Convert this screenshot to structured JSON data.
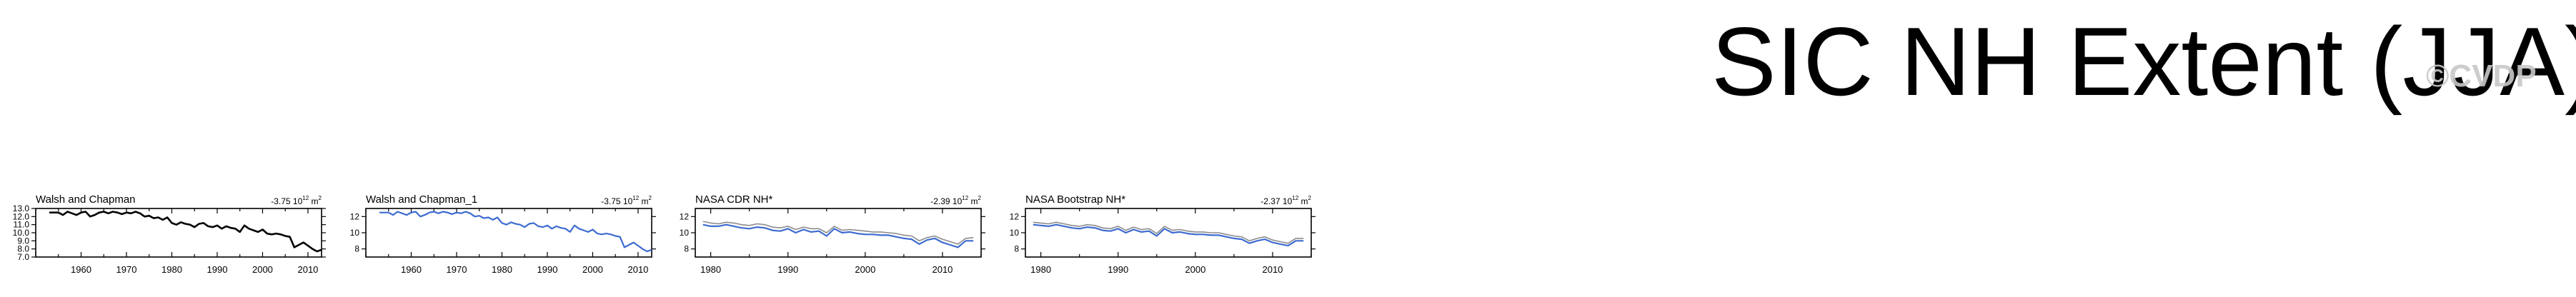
{
  "page": {
    "title": "SIC NH Extent (JJA)",
    "watermark": "©CVDP"
  },
  "chart_data": [
    {
      "type": "line",
      "title": "Walsh and Chapman",
      "trend_label": "-3.75 10",
      "trend_exp": "12",
      "trend_unit": "m",
      "trend_unit_exp": "2",
      "xlim": [
        1950,
        2013
      ],
      "ylim": [
        7.0,
        13.0
      ],
      "xticks": [
        1960,
        1970,
        1980,
        1990,
        2000,
        2010
      ],
      "yticks": [
        7.0,
        8.0,
        9.0,
        10.0,
        11.0,
        12.0,
        13.0
      ],
      "ytick_labels": [
        "7.0",
        "8.0",
        "9.0",
        "10.0",
        "11.0",
        "12.0",
        "13.0"
      ],
      "series": [
        {
          "color": "#000000",
          "x": [
            1953,
            1954,
            1955,
            1956,
            1957,
            1958,
            1959,
            1960,
            1961,
            1962,
            1963,
            1964,
            1965,
            1966,
            1967,
            1968,
            1969,
            1970,
            1971,
            1972,
            1973,
            1974,
            1975,
            1976,
            1977,
            1978,
            1979,
            1980,
            1981,
            1982,
            1983,
            1984,
            1985,
            1986,
            1987,
            1988,
            1989,
            1990,
            1991,
            1992,
            1993,
            1994,
            1995,
            1996,
            1997,
            1998,
            1999,
            2000,
            2001,
            2002,
            2003,
            2004,
            2005,
            2006,
            2007,
            2008,
            2009,
            2010,
            2011,
            2012,
            2013
          ],
          "y": [
            12.5,
            12.5,
            12.5,
            12.2,
            12.6,
            12.4,
            12.2,
            12.5,
            12.6,
            12.0,
            12.2,
            12.5,
            12.6,
            12.4,
            12.6,
            12.5,
            12.3,
            12.5,
            12.4,
            12.6,
            12.4,
            12.0,
            12.1,
            11.8,
            11.9,
            11.6,
            11.9,
            11.2,
            11.0,
            11.3,
            11.1,
            11.0,
            10.7,
            11.1,
            11.2,
            10.8,
            10.7,
            10.9,
            10.5,
            10.8,
            10.6,
            10.5,
            10.1,
            10.9,
            10.5,
            10.3,
            10.1,
            10.4,
            9.9,
            9.8,
            9.9,
            9.8,
            9.6,
            9.5,
            8.2,
            8.5,
            8.8,
            8.4,
            8.0,
            7.7,
            7.9
          ]
        }
      ]
    },
    {
      "type": "line",
      "title": "Walsh and Chapman_1",
      "trend_label": "-3.75 10",
      "trend_exp": "12",
      "trend_unit": "m",
      "trend_unit_exp": "2",
      "xlim": [
        1950,
        2013
      ],
      "ylim": [
        7.0,
        13.0
      ],
      "xticks": [
        1960,
        1970,
        1980,
        1990,
        2000,
        2010
      ],
      "yticks": [
        8,
        10,
        12
      ],
      "ytick_labels": [
        "8",
        "10",
        "12"
      ],
      "series": [
        {
          "color": "#3d6bd0",
          "x": [
            1953,
            1954,
            1955,
            1956,
            1957,
            1958,
            1959,
            1960,
            1961,
            1962,
            1963,
            1964,
            1965,
            1966,
            1967,
            1968,
            1969,
            1970,
            1971,
            1972,
            1973,
            1974,
            1975,
            1976,
            1977,
            1978,
            1979,
            1980,
            1981,
            1982,
            1983,
            1984,
            1985,
            1986,
            1987,
            1988,
            1989,
            1990,
            1991,
            1992,
            1993,
            1994,
            1995,
            1996,
            1997,
            1998,
            1999,
            2000,
            2001,
            2002,
            2003,
            2004,
            2005,
            2006,
            2007,
            2008,
            2009,
            2010,
            2011,
            2012,
            2013
          ],
          "y": [
            12.5,
            12.5,
            12.5,
            12.2,
            12.6,
            12.4,
            12.2,
            12.5,
            12.6,
            12.0,
            12.2,
            12.5,
            12.6,
            12.4,
            12.6,
            12.5,
            12.3,
            12.5,
            12.4,
            12.6,
            12.4,
            12.0,
            12.1,
            11.8,
            11.9,
            11.6,
            11.9,
            11.2,
            11.0,
            11.3,
            11.1,
            11.0,
            10.7,
            11.1,
            11.2,
            10.8,
            10.7,
            10.9,
            10.5,
            10.8,
            10.6,
            10.5,
            10.1,
            10.9,
            10.5,
            10.3,
            10.1,
            10.4,
            9.9,
            9.8,
            9.9,
            9.8,
            9.6,
            9.5,
            8.2,
            8.5,
            8.8,
            8.4,
            8.0,
            7.7,
            7.9
          ]
        }
      ]
    },
    {
      "type": "line",
      "title": "NASA CDR NH*",
      "trend_label": "-2.39 10",
      "trend_exp": "12",
      "trend_unit": "m",
      "trend_unit_exp": "2",
      "xlim": [
        1978,
        2015
      ],
      "ylim": [
        7.0,
        13.0
      ],
      "xticks": [
        1980,
        1990,
        2000,
        2010
      ],
      "yticks": [
        8,
        10,
        12
      ],
      "ytick_labels": [
        "8",
        "10",
        "12"
      ],
      "series": [
        {
          "color": "#3d6bd0",
          "x": [
            1979,
            1980,
            1981,
            1982,
            1983,
            1984,
            1985,
            1986,
            1987,
            1988,
            1989,
            1990,
            1991,
            1992,
            1993,
            1994,
            1995,
            1996,
            1997,
            1998,
            1999,
            2000,
            2001,
            2002,
            2003,
            2004,
            2005,
            2006,
            2007,
            2008,
            2009,
            2010,
            2011,
            2012,
            2013,
            2014
          ],
          "y": [
            11.0,
            10.8,
            10.8,
            11.0,
            10.8,
            10.6,
            10.5,
            10.7,
            10.6,
            10.3,
            10.2,
            10.5,
            10.0,
            10.4,
            10.1,
            10.2,
            9.6,
            10.5,
            10.0,
            10.1,
            9.9,
            9.8,
            9.8,
            9.7,
            9.7,
            9.5,
            9.3,
            9.2,
            8.6,
            9.1,
            9.3,
            8.8,
            8.5,
            8.2,
            9.0,
            9.0
          ]
        },
        {
          "color": "#8c8c8c",
          "x": [
            1979,
            1980,
            1981,
            1982,
            1983,
            1984,
            1985,
            1986,
            1987,
            1988,
            1989,
            1990,
            1991,
            1992,
            1993,
            1994,
            1995,
            1996,
            1997,
            1998,
            1999,
            2000,
            2001,
            2002,
            2003,
            2004,
            2005,
            2006,
            2007,
            2008,
            2009,
            2010,
            2011,
            2012,
            2013,
            2014
          ],
          "y": [
            11.4,
            11.2,
            11.1,
            11.3,
            11.2,
            11.0,
            10.9,
            11.1,
            11.0,
            10.7,
            10.6,
            10.8,
            10.4,
            10.7,
            10.5,
            10.5,
            10.0,
            10.8,
            10.3,
            10.4,
            10.3,
            10.2,
            10.1,
            10.1,
            10.0,
            9.9,
            9.7,
            9.6,
            9.0,
            9.4,
            9.6,
            9.2,
            8.9,
            8.6,
            9.3,
            9.4
          ]
        }
      ]
    },
    {
      "type": "line",
      "title": "NASA Bootstrap NH*",
      "trend_label": "-2.37 10",
      "trend_exp": "12",
      "trend_unit": "m",
      "trend_unit_exp": "2",
      "xlim": [
        1978,
        2015
      ],
      "ylim": [
        7.0,
        13.0
      ],
      "xticks": [
        1980,
        1990,
        2000,
        2010
      ],
      "yticks": [
        8,
        10,
        12
      ],
      "ytick_labels": [
        "8",
        "10",
        "12"
      ],
      "series": [
        {
          "color": "#3d6bd0",
          "x": [
            1979,
            1980,
            1981,
            1982,
            1983,
            1984,
            1985,
            1986,
            1987,
            1988,
            1989,
            1990,
            1991,
            1992,
            1993,
            1994,
            1995,
            1996,
            1997,
            1998,
            1999,
            2000,
            2001,
            2002,
            2003,
            2004,
            2005,
            2006,
            2007,
            2008,
            2009,
            2010,
            2011,
            2012,
            2013,
            2014
          ],
          "y": [
            11.0,
            10.9,
            10.8,
            11.0,
            10.8,
            10.6,
            10.5,
            10.7,
            10.6,
            10.3,
            10.2,
            10.5,
            10.0,
            10.4,
            10.1,
            10.2,
            9.6,
            10.5,
            10.0,
            10.1,
            9.9,
            9.8,
            9.8,
            9.7,
            9.7,
            9.5,
            9.3,
            9.2,
            8.7,
            9.0,
            9.2,
            8.8,
            8.6,
            8.4,
            9.0,
            9.0
          ]
        },
        {
          "color": "#8c8c8c",
          "x": [
            1979,
            1980,
            1981,
            1982,
            1983,
            1984,
            1985,
            1986,
            1987,
            1988,
            1989,
            1990,
            1991,
            1992,
            1993,
            1994,
            1995,
            1996,
            1997,
            1998,
            1999,
            2000,
            2001,
            2002,
            2003,
            2004,
            2005,
            2006,
            2007,
            2008,
            2009,
            2010,
            2011,
            2012,
            2013,
            2014
          ],
          "y": [
            11.3,
            11.2,
            11.1,
            11.3,
            11.1,
            10.9,
            10.8,
            11.0,
            10.9,
            10.6,
            10.5,
            10.8,
            10.3,
            10.7,
            10.4,
            10.5,
            9.9,
            10.8,
            10.3,
            10.4,
            10.2,
            10.1,
            10.1,
            10.0,
            10.0,
            9.8,
            9.6,
            9.5,
            9.0,
            9.3,
            9.5,
            9.1,
            8.9,
            8.7,
            9.3,
            9.3
          ]
        }
      ]
    }
  ]
}
